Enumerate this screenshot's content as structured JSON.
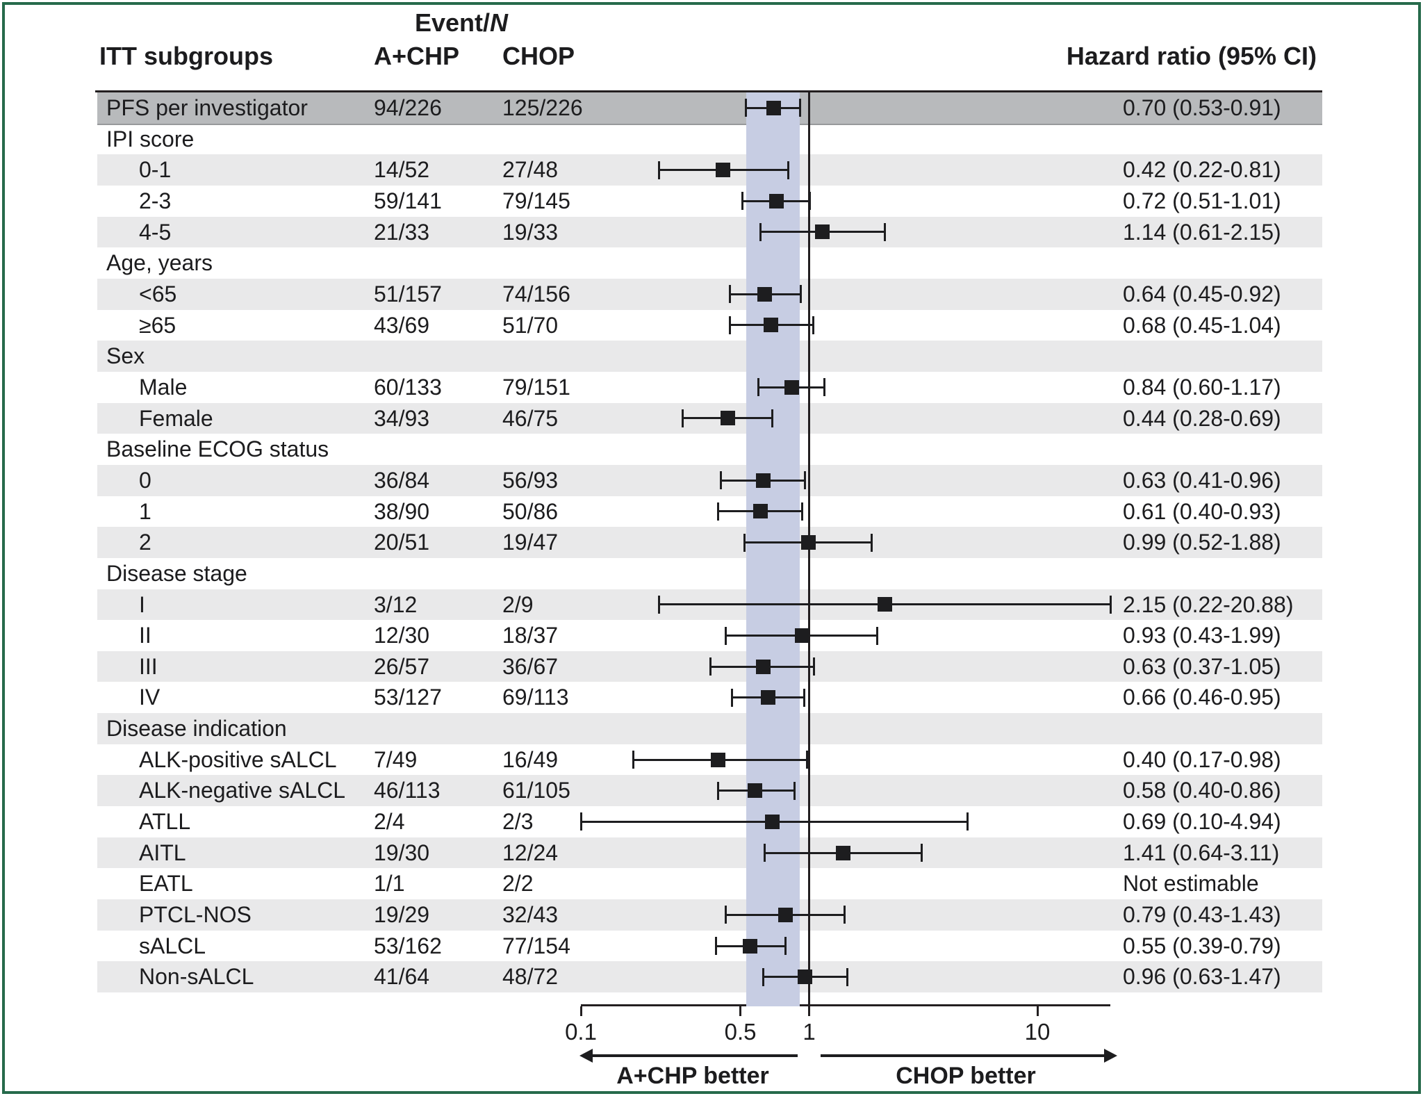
{
  "header": {
    "event_prefix": "Event/",
    "event_n_italic": "N",
    "itt_subgroups": "ITT subgroups",
    "achp_col": "A+CHP",
    "chop_col": "CHOP",
    "hazard_ratio_col": "Hazard ratio (95% CI)"
  },
  "footer": {
    "left_arrow_label": "A+CHP better",
    "right_arrow_label": "CHOP better"
  },
  "colors": {
    "frame_green": "#266a4b",
    "band_lavender": "#c7cde3",
    "row_dark_gray": "#b8babc",
    "row_light_gray": "#e9e9ea",
    "ink": "#231f20"
  },
  "chart_data": {
    "type": "forest",
    "x_axis": {
      "scale": "log",
      "min": 0.1,
      "max": 20.9,
      "ticks": [
        0.1,
        0.5,
        1,
        10
      ],
      "tick_labels": [
        "0.1",
        "0.5",
        "1",
        "10"
      ]
    },
    "reference_line": 1,
    "shaded_band": [
      0.53,
      0.91
    ],
    "rows": [
      {
        "label": "PFS per investigator",
        "indent": 0,
        "achp": "94/226",
        "chop": "125/226",
        "hr_text": "0.70 (0.53-0.91)",
        "hr": 0.7,
        "lo": 0.53,
        "hi": 0.91,
        "shade": "dark"
      },
      {
        "label": "IPI score",
        "indent": 0,
        "achp": "",
        "chop": "",
        "hr_text": "",
        "hr": null,
        "lo": null,
        "hi": null,
        "shade": "white"
      },
      {
        "label": "0-1",
        "indent": 1,
        "achp": "14/52",
        "chop": "27/48",
        "hr_text": "0.42 (0.22-0.81)",
        "hr": 0.42,
        "lo": 0.22,
        "hi": 0.81,
        "shade": "gray"
      },
      {
        "label": "2-3",
        "indent": 1,
        "achp": "59/141",
        "chop": "79/145",
        "hr_text": "0.72 (0.51-1.01)",
        "hr": 0.72,
        "lo": 0.51,
        "hi": 1.01,
        "shade": "white"
      },
      {
        "label": "4-5",
        "indent": 1,
        "achp": "21/33",
        "chop": "19/33",
        "hr_text": "1.14 (0.61-2.15)",
        "hr": 1.14,
        "lo": 0.61,
        "hi": 2.15,
        "shade": "gray"
      },
      {
        "label": "Age, years",
        "indent": 0,
        "achp": "",
        "chop": "",
        "hr_text": "",
        "hr": null,
        "lo": null,
        "hi": null,
        "shade": "white"
      },
      {
        "label": "<65",
        "indent": 1,
        "achp": "51/157",
        "chop": "74/156",
        "hr_text": "0.64 (0.45-0.92)",
        "hr": 0.64,
        "lo": 0.45,
        "hi": 0.92,
        "shade": "gray"
      },
      {
        "label": "≥65",
        "indent": 1,
        "achp": "43/69",
        "chop": "51/70",
        "hr_text": "0.68 (0.45-1.04)",
        "hr": 0.68,
        "lo": 0.45,
        "hi": 1.04,
        "shade": "white"
      },
      {
        "label": "Sex",
        "indent": 0,
        "achp": "",
        "chop": "",
        "hr_text": "",
        "hr": null,
        "lo": null,
        "hi": null,
        "shade": "gray"
      },
      {
        "label": "Male",
        "indent": 1,
        "achp": "60/133",
        "chop": "79/151",
        "hr_text": "0.84 (0.60-1.17)",
        "hr": 0.84,
        "lo": 0.6,
        "hi": 1.17,
        "shade": "white"
      },
      {
        "label": "Female",
        "indent": 1,
        "achp": "34/93",
        "chop": "46/75",
        "hr_text": "0.44 (0.28-0.69)",
        "hr": 0.44,
        "lo": 0.28,
        "hi": 0.69,
        "shade": "gray"
      },
      {
        "label": "Baseline ECOG status",
        "indent": 0,
        "achp": "",
        "chop": "",
        "hr_text": "",
        "hr": null,
        "lo": null,
        "hi": null,
        "shade": "white"
      },
      {
        "label": "0",
        "indent": 1,
        "achp": "36/84",
        "chop": "56/93",
        "hr_text": "0.63 (0.41-0.96)",
        "hr": 0.63,
        "lo": 0.41,
        "hi": 0.96,
        "shade": "gray"
      },
      {
        "label": "1",
        "indent": 1,
        "achp": "38/90",
        "chop": "50/86",
        "hr_text": "0.61 (0.40-0.93)",
        "hr": 0.61,
        "lo": 0.4,
        "hi": 0.93,
        "shade": "white"
      },
      {
        "label": "2",
        "indent": 1,
        "achp": "20/51",
        "chop": "19/47",
        "hr_text": "0.99 (0.52-1.88)",
        "hr": 0.99,
        "lo": 0.52,
        "hi": 1.88,
        "shade": "gray"
      },
      {
        "label": "Disease stage",
        "indent": 0,
        "achp": "",
        "chop": "",
        "hr_text": "",
        "hr": null,
        "lo": null,
        "hi": null,
        "shade": "white"
      },
      {
        "label": "I",
        "indent": 1,
        "achp": "3/12",
        "chop": "2/9",
        "hr_text": "2.15 (0.22-20.88)",
        "hr": 2.15,
        "lo": 0.22,
        "hi": 20.88,
        "shade": "gray"
      },
      {
        "label": "II",
        "indent": 1,
        "achp": "12/30",
        "chop": "18/37",
        "hr_text": "0.93 (0.43-1.99)",
        "hr": 0.93,
        "lo": 0.43,
        "hi": 1.99,
        "shade": "white"
      },
      {
        "label": "III",
        "indent": 1,
        "achp": "26/57",
        "chop": "36/67",
        "hr_text": "0.63 (0.37-1.05)",
        "hr": 0.63,
        "lo": 0.37,
        "hi": 1.05,
        "shade": "gray"
      },
      {
        "label": "IV",
        "indent": 1,
        "achp": "53/127",
        "chop": "69/113",
        "hr_text": "0.66 (0.46-0.95)",
        "hr": 0.66,
        "lo": 0.46,
        "hi": 0.95,
        "shade": "white"
      },
      {
        "label": "Disease indication",
        "indent": 0,
        "achp": "",
        "chop": "",
        "hr_text": "",
        "hr": null,
        "lo": null,
        "hi": null,
        "shade": "gray"
      },
      {
        "label": "ALK-positive sALCL",
        "indent": 1,
        "achp": "7/49",
        "chop": "16/49",
        "hr_text": "0.40 (0.17-0.98)",
        "hr": 0.4,
        "lo": 0.17,
        "hi": 0.98,
        "shade": "white"
      },
      {
        "label": "ALK-negative sALCL",
        "indent": 1,
        "achp": "46/113",
        "chop": "61/105",
        "hr_text": "0.58 (0.40-0.86)",
        "hr": 0.58,
        "lo": 0.4,
        "hi": 0.86,
        "shade": "gray"
      },
      {
        "label": "ATLL",
        "indent": 1,
        "achp": "2/4",
        "chop": "2/3",
        "hr_text": "0.69 (0.10-4.94)",
        "hr": 0.69,
        "lo": 0.1,
        "hi": 4.94,
        "shade": "white"
      },
      {
        "label": "AITL",
        "indent": 1,
        "achp": "19/30",
        "chop": "12/24",
        "hr_text": "1.41 (0.64-3.11)",
        "hr": 1.41,
        "lo": 0.64,
        "hi": 3.11,
        "shade": "gray"
      },
      {
        "label": "EATL",
        "indent": 1,
        "achp": "1/1",
        "chop": "2/2",
        "hr_text": "Not estimable",
        "hr": null,
        "lo": null,
        "hi": null,
        "shade": "white"
      },
      {
        "label": "PTCL-NOS",
        "indent": 1,
        "achp": "19/29",
        "chop": "32/43",
        "hr_text": "0.79 (0.43-1.43)",
        "hr": 0.79,
        "lo": 0.43,
        "hi": 1.43,
        "shade": "gray"
      },
      {
        "label": "sALCL",
        "indent": 1,
        "achp": "53/162",
        "chop": "77/154",
        "hr_text": "0.55 (0.39-0.79)",
        "hr": 0.55,
        "lo": 0.39,
        "hi": 0.79,
        "shade": "white"
      },
      {
        "label": "Non-sALCL",
        "indent": 1,
        "achp": "41/64",
        "chop": "48/72",
        "hr_text": "0.96 (0.63-1.47)",
        "hr": 0.96,
        "lo": 0.63,
        "hi": 1.47,
        "shade": "gray"
      }
    ]
  }
}
